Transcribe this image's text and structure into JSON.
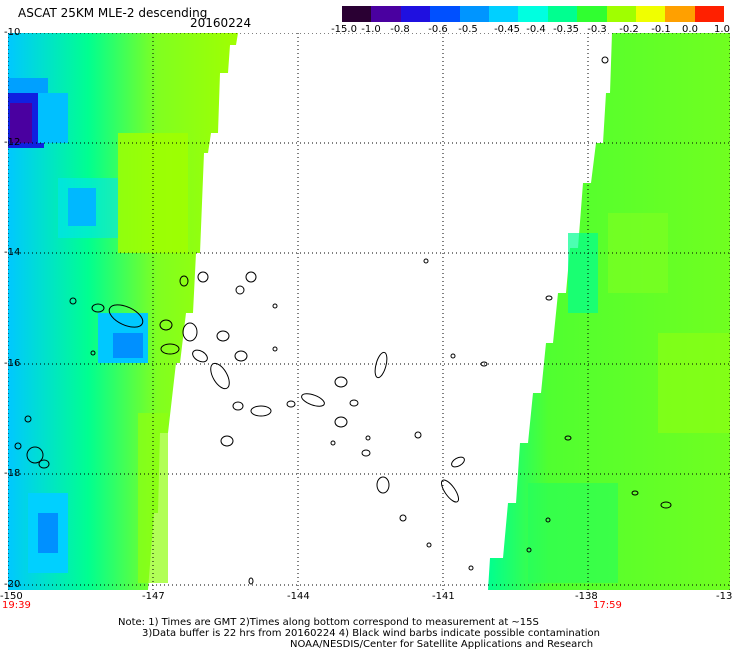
{
  "title": {
    "product": "ASCAT 25KM MLE-2 descending",
    "date": "20160224"
  },
  "colorbar": {
    "labels": [
      "-15.0",
      "-1.0",
      "-0.8",
      "-0.6",
      "-0.5",
      "-0.45",
      "-0.4",
      "-0.35",
      "-0.3",
      "-0.2",
      "-0.1",
      "0.0",
      "1.0"
    ],
    "colors": [
      "#2a0033",
      "#4a00a0",
      "#1f10e0",
      "#0050ff",
      "#0095ff",
      "#00d0ff",
      "#00ffe0",
      "#00ff90",
      "#30ff30",
      "#a0ff00",
      "#f0ff00",
      "#ffa000",
      "#ff2000"
    ]
  },
  "map": {
    "lat_labels": [
      "-10",
      "-12",
      "-14",
      "-16",
      "-18",
      "-20"
    ],
    "lon_labels": [
      "-150",
      "-147",
      "-144",
      "-141",
      "-138",
      "-13"
    ],
    "swath_times": [
      "19:39",
      "17:59"
    ]
  },
  "notes": [
    "Note: 1) Times are GMT 2)Times along bottom correspond to measurement at ~15S",
    "3)Data buffer is 22 hrs from 20160224 4) Black wind barbs indicate possible contamination",
    "NOAA/NESDIS/Center for Satellite Applications and Research"
  ]
}
